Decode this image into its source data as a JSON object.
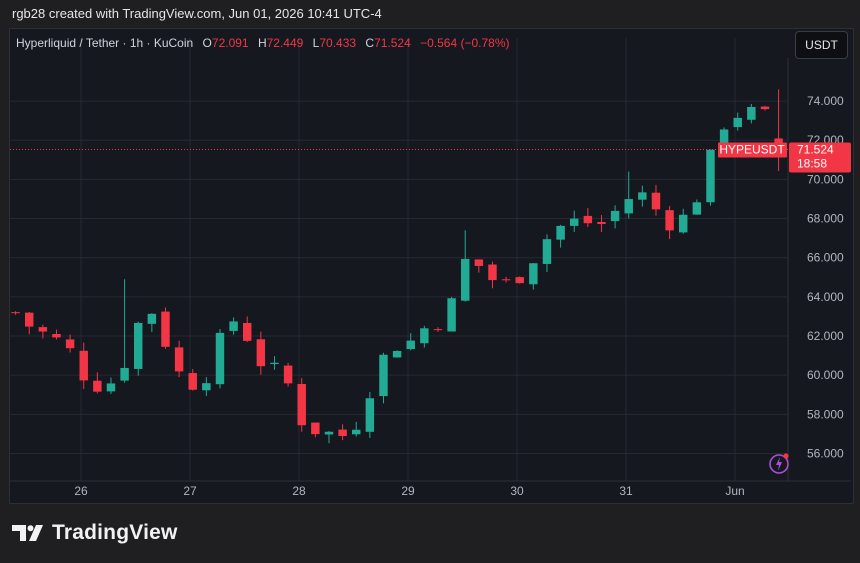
{
  "header": {
    "credit": "rgb28 created with TradingView.com, Jun 01, 2026 10:41 UTC-4"
  },
  "legend": {
    "symbol": "Hyperliquid / Tether · 1h · KuCoin",
    "o_label": "O",
    "o_value": "72.091",
    "h_label": "H",
    "h_value": "72.449",
    "l_label": "L",
    "l_value": "70.433",
    "c_label": "C",
    "c_value": "71.524",
    "change": "−0.564 (−0.78%)"
  },
  "currency_button": "USDT",
  "watermark": "TradingView",
  "colors": {
    "up": "#22ab94",
    "down": "#f23645",
    "bg": "#161820",
    "grid": "#262932",
    "axis_text": "#b2b5be"
  },
  "chart_data": {
    "type": "candlestick",
    "title": "Hyperliquid / Tether · 1h · KuCoin",
    "x_ticks": [
      {
        "label": "26",
        "day": 1
      },
      {
        "label": "27",
        "day": 2
      },
      {
        "label": "28",
        "day": 3
      },
      {
        "label": "29",
        "day": 4
      },
      {
        "label": "30",
        "day": 5
      },
      {
        "label": "31",
        "day": 6
      },
      {
        "label": "Jun",
        "day": 7
      }
    ],
    "y_ticks": [
      "56.000",
      "58.000",
      "60.000",
      "62.000",
      "64.000",
      "66.000",
      "68.000",
      "70.000",
      "72.000",
      "74.000"
    ],
    "ylim": [
      54.8,
      76.2
    ],
    "xlim_days": [
      0.4,
      7.52
    ],
    "last_price": {
      "symbol": "HYPEUSDT",
      "price": "71.524",
      "countdown": "18:58",
      "value": 71.524
    },
    "series": [
      {
        "name": "HYPEUSDT",
        "start_day": 0.4,
        "interval_hours": 3,
        "close_points": [
          [
            0.4,
            63.2
          ],
          [
            0.55,
            62.4
          ],
          [
            0.75,
            61.9
          ],
          [
            0.95,
            61.0
          ],
          [
            1.05,
            59.7
          ],
          [
            1.2,
            59.4
          ],
          [
            1.35,
            59.9
          ],
          [
            1.5,
            62.2
          ],
          [
            1.6,
            63.9
          ],
          [
            1.75,
            62.0
          ],
          [
            1.9,
            60.1
          ],
          [
            2.0,
            59.5
          ],
          [
            2.15,
            60.0
          ],
          [
            2.3,
            62.1
          ],
          [
            2.4,
            62.8
          ],
          [
            2.55,
            61.8
          ],
          [
            2.7,
            60.1
          ],
          [
            2.85,
            60.4
          ],
          [
            3.0,
            57.8
          ],
          [
            3.15,
            57.2
          ],
          [
            3.3,
            57.0
          ],
          [
            3.45,
            56.9
          ],
          [
            3.6,
            58.2
          ],
          [
            3.7,
            60.3
          ],
          [
            3.85,
            61.5
          ],
          [
            4.0,
            61.6
          ],
          [
            4.15,
            62.4
          ],
          [
            4.3,
            62.8
          ],
          [
            4.45,
            64.1
          ],
          [
            4.55,
            66.4
          ],
          [
            4.7,
            65.2
          ],
          [
            4.85,
            64.6
          ],
          [
            5.0,
            64.9
          ],
          [
            5.15,
            66.0
          ],
          [
            5.3,
            67.2
          ],
          [
            5.45,
            67.8
          ],
          [
            5.6,
            67.9
          ],
          [
            5.75,
            67.6
          ],
          [
            5.95,
            68.6
          ],
          [
            6.1,
            69.5
          ],
          [
            6.25,
            68.6
          ],
          [
            6.4,
            67.8
          ],
          [
            6.55,
            68.1
          ],
          [
            6.7,
            69.6
          ],
          [
            6.85,
            72.6
          ],
          [
            7.0,
            73.3
          ],
          [
            7.15,
            73.4
          ],
          [
            7.3,
            73.2
          ],
          [
            7.4,
            72.8
          ],
          [
            7.52,
            71.524
          ]
        ],
        "highlights": [
          {
            "day": 1.4,
            "high": 64.9
          },
          {
            "day": 4.53,
            "high": 67.4
          },
          {
            "day": 6.05,
            "high": 70.4
          },
          {
            "day": 7.37,
            "high": 74.6
          },
          {
            "day": 7.52,
            "low": 70.433
          }
        ]
      }
    ]
  }
}
